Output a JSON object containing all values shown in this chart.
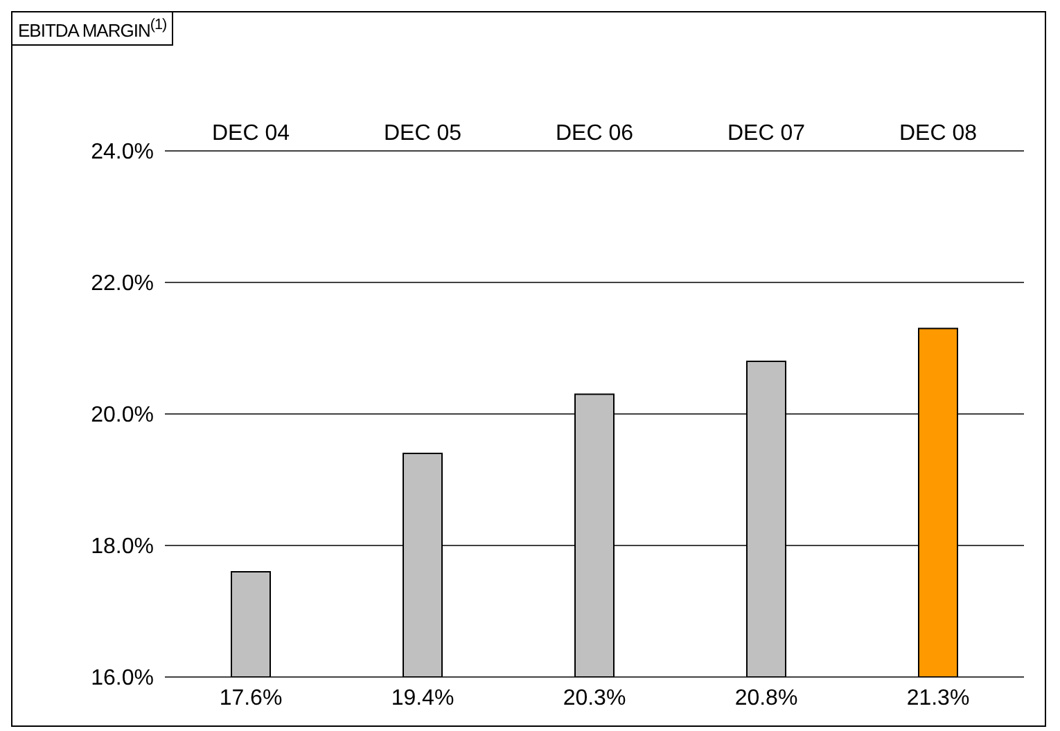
{
  "chart_data": {
    "type": "bar",
    "title": "EBITDA MARGIN$^{(1)}$",
    "categories": [
      "DEC 04",
      "DEC 05",
      "DEC 06",
      "DEC 07",
      "DEC 08"
    ],
    "values": [
      17.6,
      19.4,
      20.3,
      20.8,
      21.3
    ],
    "colors": [
      "#c0c0c0",
      "#c0c0c0",
      "#c0c0c0",
      "#c0c0c0",
      "#ff9900"
    ],
    "value_labels": [
      "17.6%",
      "19.4%",
      "20.3%",
      "20.8%",
      "21.3%"
    ],
    "ylim": [
      16,
      24
    ],
    "yticks": [
      {
        "value": 16,
        "label": "16.0%"
      },
      {
        "value": 18,
        "label": "18.0%"
      },
      {
        "value": 20,
        "label": "20.0%"
      },
      {
        "value": 22,
        "label": "22.0%"
      },
      {
        "value": 24,
        "label": "24.0%"
      }
    ],
    "grid": "y"
  }
}
